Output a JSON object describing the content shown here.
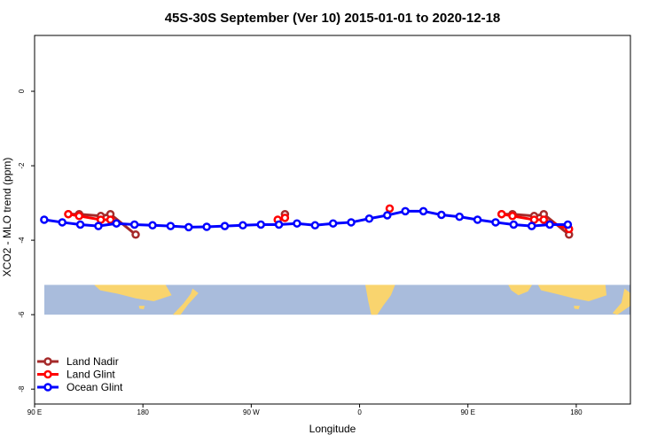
{
  "chart_data": {
    "type": "line",
    "title": "45S-30S September (Ver 10)   2015-01-01 to 2020-12-18",
    "xlabel": "Longitude",
    "ylabel": "XCO2 - MLO trend (ppm)",
    "xlim": [
      0,
      495
    ],
    "ylim": [
      -8.4,
      1.5
    ],
    "x_ticks": [
      {
        "value": 0,
        "label": "90 E"
      },
      {
        "value": 90,
        "label": "180"
      },
      {
        "value": 180,
        "label": "90 W"
      },
      {
        "value": 270,
        "label": "0"
      },
      {
        "value": 360,
        "label": "90 E"
      },
      {
        "value": 450,
        "label": "180"
      }
    ],
    "y_ticks": [
      {
        "value": 0,
        "label": "0"
      },
      {
        "value": -2,
        "label": "-2"
      },
      {
        "value": -4,
        "label": "-4"
      },
      {
        "value": -6,
        "label": "-6"
      },
      {
        "value": -8,
        "label": "-8"
      }
    ],
    "series": [
      {
        "name": "Land Nadir",
        "color": "#a52a2a",
        "x": [
          28,
          37,
          55,
          63,
          84,
          208,
          388,
          397,
          415,
          423,
          444
        ],
        "y": [
          -3.3,
          -3.3,
          -3.35,
          -3.3,
          -3.85,
          -3.3,
          -3.3,
          -3.3,
          -3.35,
          -3.3,
          -3.85
        ]
      },
      {
        "name": "Land Glint",
        "color": "#ff0000",
        "x": [
          28,
          37,
          55,
          63,
          202,
          208,
          295,
          388,
          397,
          415,
          423,
          444
        ],
        "y": [
          -3.3,
          -3.35,
          -3.45,
          -3.45,
          -3.45,
          -3.4,
          -3.15,
          -3.3,
          -3.35,
          -3.45,
          -3.45,
          -3.7
        ]
      },
      {
        "name": "Ocean Glint",
        "color": "#0000ff",
        "x": [
          8,
          23,
          38,
          53,
          68,
          83,
          98,
          113,
          128,
          143,
          158,
          173,
          188,
          203,
          218,
          233,
          248,
          263,
          278,
          293,
          308,
          323,
          338,
          353,
          368,
          383,
          398,
          413,
          428,
          443
        ],
        "y": [
          -3.45,
          -3.52,
          -3.58,
          -3.62,
          -3.55,
          -3.58,
          -3.6,
          -3.62,
          -3.65,
          -3.64,
          -3.62,
          -3.6,
          -3.58,
          -3.58,
          -3.55,
          -3.6,
          -3.55,
          -3.52,
          -3.42,
          -3.33,
          -3.22,
          -3.22,
          -3.32,
          -3.37,
          -3.45,
          -3.52,
          -3.58,
          -3.62,
          -3.58,
          -3.58
        ]
      }
    ],
    "map_strip": {
      "y_range": [
        -6.0,
        -5.2
      ],
      "ocean_color": "#a9bcdc",
      "land_color": "#f9d46e"
    },
    "legend": "bottom-left",
    "grid": false
  }
}
